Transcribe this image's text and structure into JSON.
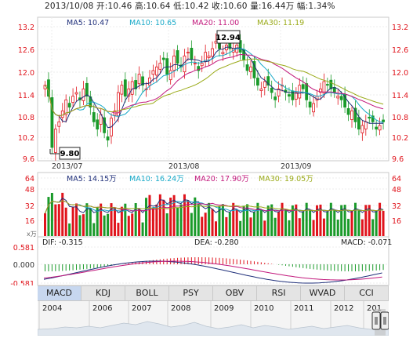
{
  "header": {
    "text": "2013/10/08 开:10.46 高:10.64 低:10.42 收:10.60 量:16.44万 幅:1.34%"
  },
  "price_panel": {
    "y_axis_labels": [
      "13.2",
      "12.6",
      "12.0",
      "11.4",
      "10.8",
      "10.2",
      "9.6"
    ],
    "x_axis_labels": [
      "2013/07",
      "2013/08",
      "2013/09"
    ],
    "ma_legend": [
      {
        "label": "MA5: 10.47",
        "color": "#1f2f7a"
      },
      {
        "label": "MA10: 10.65",
        "color": "#18a9c8"
      },
      {
        "label": "MA20: 11.00",
        "color": "#c2187c"
      },
      {
        "label": "MA30: 11.19",
        "color": "#9aaa18"
      }
    ],
    "high_marker": "12.94",
    "low_marker": "9.80",
    "up_color": "#e0141c",
    "down_color": "#1a9a2a"
  },
  "volume_panel": {
    "y_axis_labels": [
      "64",
      "48",
      "32",
      "16"
    ],
    "unit_label": "x万",
    "ma_legend": [
      {
        "label": "MA5: 14.15万",
        "color": "#1f2f7a"
      },
      {
        "label": "MA10: 16.24万",
        "color": "#18a9c8"
      },
      {
        "label": "MA20: 17.90万",
        "color": "#c2187c"
      },
      {
        "label": "MA30: 19.05万",
        "color": "#9aaa18"
      }
    ]
  },
  "macd_panel": {
    "y_axis_labels": [
      "0.581",
      "0.000",
      "-0.581"
    ],
    "dif": "DIF: -0.315",
    "dea": "DEA: -0.280",
    "macd": "MACD: -0.071"
  },
  "tabs": [
    {
      "label": "MACD",
      "active": true
    },
    {
      "label": "KDJ",
      "active": false
    },
    {
      "label": "BOLL",
      "active": false
    },
    {
      "label": "PSY",
      "active": false
    },
    {
      "label": "OBV",
      "active": false
    },
    {
      "label": "RSI",
      "active": false
    },
    {
      "label": "WVAD",
      "active": false
    },
    {
      "label": "CCI",
      "active": false
    }
  ],
  "timeline": {
    "years": [
      "2004",
      "2006",
      "2007",
      "2008",
      "2009",
      "2010",
      "2011",
      "2012",
      "201"
    ]
  }
}
